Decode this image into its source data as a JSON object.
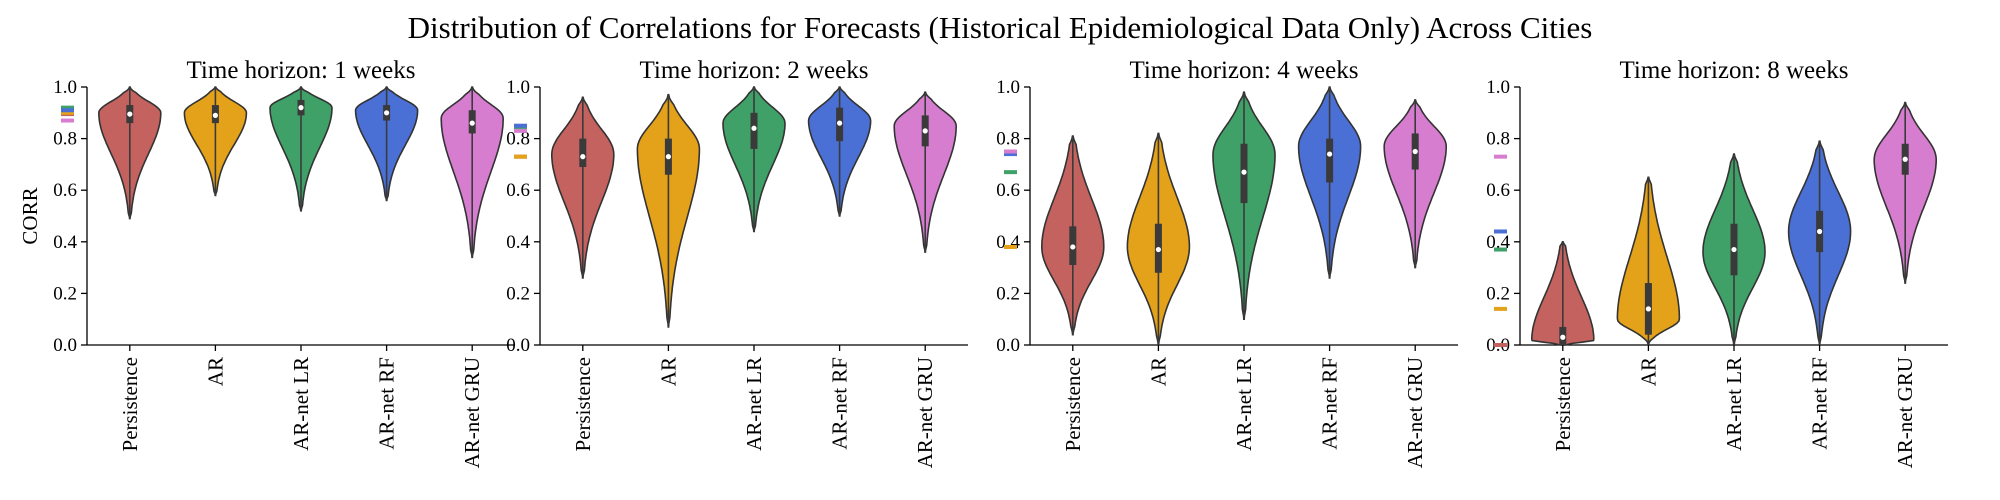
{
  "figure": {
    "title": "Distribution of Correlations for Forecasts (Historical Epidemiological Data Only) Across Cities"
  },
  "colors": {
    "Persistence": "#c4625f",
    "AR": "#e3a21a",
    "AR-net LR": "#3fa168",
    "AR-net RF": "#4a70d6",
    "AR-net GRU": "#d77dd0"
  },
  "chart_data": [
    {
      "type": "violin",
      "title": "Time horizon: 1 weeks",
      "ylabel": "CORR",
      "ylim": [
        0,
        1
      ],
      "yticks": [
        "0.0",
        "0.2",
        "0.4",
        "0.6",
        "0.8",
        "1.0"
      ],
      "categories": [
        "Persistence",
        "AR",
        "AR-net LR",
        "AR-net RF",
        "AR-net GRU"
      ],
      "series": [
        {
          "category": "Persistence",
          "min": 0.49,
          "q1": 0.86,
          "median": 0.895,
          "q3": 0.93,
          "max": 1.0,
          "mode": 0.9,
          "skew": 0.0
        },
        {
          "category": "AR",
          "min": 0.58,
          "q1": 0.86,
          "median": 0.89,
          "q3": 0.93,
          "max": 1.0,
          "mode": 0.9,
          "skew": 0.0
        },
        {
          "category": "AR-net LR",
          "min": 0.52,
          "q1": 0.89,
          "median": 0.92,
          "q3": 0.95,
          "max": 1.0,
          "mode": 0.92,
          "skew": 0.0
        },
        {
          "category": "AR-net RF",
          "min": 0.56,
          "q1": 0.87,
          "median": 0.9,
          "q3": 0.93,
          "max": 1.0,
          "mode": 0.91,
          "skew": 0.0
        },
        {
          "category": "AR-net GRU",
          "min": 0.34,
          "q1": 0.82,
          "median": 0.86,
          "q3": 0.91,
          "max": 1.0,
          "mode": 0.88,
          "skew": 0.0
        }
      ],
      "means": [
        {
          "category": "Persistence",
          "value": 0.895
        },
        {
          "category": "AR",
          "value": 0.9
        },
        {
          "category": "AR-net LR",
          "value": 0.92
        },
        {
          "category": "AR-net RF",
          "value": 0.91
        },
        {
          "category": "AR-net GRU",
          "value": 0.87
        }
      ]
    },
    {
      "type": "violin",
      "title": "Time horizon: 2 weeks",
      "ylabel": "",
      "ylim": [
        0,
        1
      ],
      "yticks": [
        "0.0",
        "0.2",
        "0.4",
        "0.6",
        "0.8",
        "1.0"
      ],
      "categories": [
        "Persistence",
        "AR",
        "AR-net LR",
        "AR-net RF",
        "AR-net GRU"
      ],
      "series": [
        {
          "category": "Persistence",
          "min": 0.26,
          "q1": 0.69,
          "median": 0.73,
          "q3": 0.8,
          "max": 0.96,
          "mode": 0.74,
          "skew": 0.0
        },
        {
          "category": "AR",
          "min": 0.07,
          "q1": 0.66,
          "median": 0.73,
          "q3": 0.8,
          "max": 0.97,
          "mode": 0.76,
          "skew": 0.0
        },
        {
          "category": "AR-net LR",
          "min": 0.44,
          "q1": 0.76,
          "median": 0.84,
          "q3": 0.9,
          "max": 1.0,
          "mode": 0.86,
          "skew": 0.0
        },
        {
          "category": "AR-net RF",
          "min": 0.5,
          "q1": 0.79,
          "median": 0.86,
          "q3": 0.92,
          "max": 1.0,
          "mode": 0.87,
          "skew": 0.0
        },
        {
          "category": "AR-net GRU",
          "min": 0.36,
          "q1": 0.77,
          "median": 0.83,
          "q3": 0.89,
          "max": 0.98,
          "mode": 0.85,
          "skew": 0.0
        }
      ],
      "means": [
        {
          "category": "Persistence",
          "value": 0.73
        },
        {
          "category": "AR",
          "value": 0.73
        },
        {
          "category": "AR-net LR",
          "value": 0.84
        },
        {
          "category": "AR-net RF",
          "value": 0.85
        },
        {
          "category": "AR-net GRU",
          "value": 0.83
        }
      ]
    },
    {
      "type": "violin",
      "title": "Time horizon: 4 weeks",
      "ylabel": "",
      "ylim": [
        0,
        1
      ],
      "yticks": [
        "0.0",
        "0.2",
        "0.4",
        "0.6",
        "0.8",
        "1.0"
      ],
      "categories": [
        "Persistence",
        "AR",
        "AR-net LR",
        "AR-net RF",
        "AR-net GRU"
      ],
      "series": [
        {
          "category": "Persistence",
          "min": 0.04,
          "q1": 0.31,
          "median": 0.38,
          "q3": 0.46,
          "max": 0.81,
          "mode": 0.38,
          "skew": 0.0
        },
        {
          "category": "AR",
          "min": 0.0,
          "q1": 0.28,
          "median": 0.37,
          "q3": 0.47,
          "max": 0.82,
          "mode": 0.38,
          "skew": 0.0
        },
        {
          "category": "AR-net LR",
          "min": 0.1,
          "q1": 0.55,
          "median": 0.67,
          "q3": 0.78,
          "max": 0.98,
          "mode": 0.74,
          "skew": 0.0
        },
        {
          "category": "AR-net RF",
          "min": 0.26,
          "q1": 0.63,
          "median": 0.74,
          "q3": 0.8,
          "max": 1.0,
          "mode": 0.77,
          "skew": 0.0
        },
        {
          "category": "AR-net GRU",
          "min": 0.3,
          "q1": 0.68,
          "median": 0.75,
          "q3": 0.82,
          "max": 0.95,
          "mode": 0.77,
          "skew": 0.0
        }
      ],
      "means": [
        {
          "category": "Persistence",
          "value": 0.38
        },
        {
          "category": "AR",
          "value": 0.38
        },
        {
          "category": "AR-net LR",
          "value": 0.67
        },
        {
          "category": "AR-net RF",
          "value": 0.74
        },
        {
          "category": "AR-net GRU",
          "value": 0.75
        }
      ]
    },
    {
      "type": "violin",
      "title": "Time horizon: 8 weeks",
      "ylabel": "",
      "ylim": [
        0,
        1
      ],
      "yticks": [
        "0.0",
        "0.2",
        "0.4",
        "0.6",
        "0.8",
        "1.0"
      ],
      "categories": [
        "Persistence",
        "AR",
        "AR-net LR",
        "AR-net RF",
        "AR-net GRU"
      ],
      "series": [
        {
          "category": "Persistence",
          "min": 0.0,
          "q1": 0.0,
          "median": 0.03,
          "q3": 0.07,
          "max": 0.4,
          "mode": 0.02,
          "skew": 0.0
        },
        {
          "category": "AR",
          "min": 0.0,
          "q1": 0.04,
          "median": 0.14,
          "q3": 0.24,
          "max": 0.65,
          "mode": 0.1,
          "skew": 0.0
        },
        {
          "category": "AR-net LR",
          "min": 0.0,
          "q1": 0.27,
          "median": 0.37,
          "q3": 0.47,
          "max": 0.74,
          "mode": 0.36,
          "skew": 0.0
        },
        {
          "category": "AR-net RF",
          "min": 0.0,
          "q1": 0.36,
          "median": 0.44,
          "q3": 0.52,
          "max": 0.79,
          "mode": 0.44,
          "skew": 0.0
        },
        {
          "category": "AR-net GRU",
          "min": 0.24,
          "q1": 0.66,
          "median": 0.72,
          "q3": 0.78,
          "max": 0.94,
          "mode": 0.72,
          "skew": 0.0
        }
      ],
      "means": [
        {
          "category": "Persistence",
          "value": 0.0
        },
        {
          "category": "AR",
          "value": 0.14
        },
        {
          "category": "AR-net LR",
          "value": 0.37
        },
        {
          "category": "AR-net RF",
          "value": 0.44
        },
        {
          "category": "AR-net GRU",
          "value": 0.73
        }
      ]
    }
  ]
}
